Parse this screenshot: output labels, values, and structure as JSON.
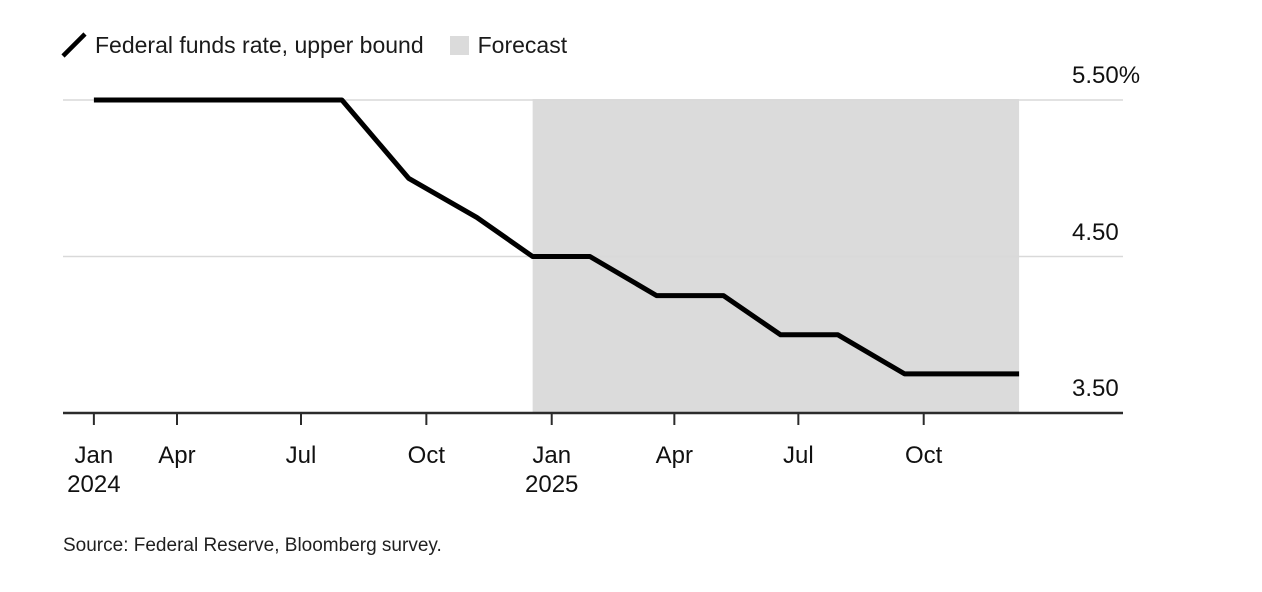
{
  "legend": {
    "series_label": "Federal funds rate, upper bound",
    "forecast_label": "Forecast"
  },
  "source": "Source: Federal Reserve, Bloomberg survey.",
  "chart_data": {
    "type": "line",
    "title": "",
    "ylabel": "",
    "xlabel": "",
    "unit": "percent",
    "ylim": [
      3.5,
      5.5
    ],
    "grid": "horizontal",
    "legend_position": "top-left",
    "line_color": "#000000",
    "forecast_fill": "#dbdbdb",
    "grid_color": "#d9d9d9",
    "axis_color": "#2b2b2b",
    "text_color": "#111111",
    "series": [
      {
        "name": "Federal funds rate, upper bound",
        "points": [
          {
            "date": "2024-01-31",
            "value": 5.5
          },
          {
            "date": "2024-03-20",
            "value": 5.5
          },
          {
            "date": "2024-05-01",
            "value": 5.5
          },
          {
            "date": "2024-06-12",
            "value": 5.5
          },
          {
            "date": "2024-07-31",
            "value": 5.5
          },
          {
            "date": "2024-09-18",
            "value": 5.0
          },
          {
            "date": "2024-11-07",
            "value": 4.75
          },
          {
            "date": "2024-12-18",
            "value": 4.5
          },
          {
            "date": "2025-01-29",
            "value": 4.5
          },
          {
            "date": "2025-03-19",
            "value": 4.25
          },
          {
            "date": "2025-05-07",
            "value": 4.25
          },
          {
            "date": "2025-06-18",
            "value": 4.0
          },
          {
            "date": "2025-07-30",
            "value": 4.0
          },
          {
            "date": "2025-09-17",
            "value": 3.75
          },
          {
            "date": "2025-10-29",
            "value": 3.75
          },
          {
            "date": "2025-12-10",
            "value": 3.75
          }
        ]
      }
    ],
    "forecast_region": {
      "start": "2024-12-18",
      "end": "2025-12-10"
    },
    "y_axis": {
      "ticks": [
        {
          "value": 5.5,
          "label": "5.50%"
        },
        {
          "value": 4.5,
          "label": "4.50"
        },
        {
          "value": 3.5,
          "label": "3.50"
        }
      ]
    },
    "x_axis": {
      "ticks": [
        {
          "date": "2024-01-31",
          "lines": [
            "Jan",
            "2024"
          ]
        },
        {
          "date": "2024-04-01",
          "lines": [
            "Apr"
          ]
        },
        {
          "date": "2024-07-01",
          "lines": [
            "Jul"
          ]
        },
        {
          "date": "2024-10-01",
          "lines": [
            "Oct"
          ]
        },
        {
          "date": "2025-01-01",
          "lines": [
            "Jan",
            "2025"
          ]
        },
        {
          "date": "2025-04-01",
          "lines": [
            "Apr"
          ]
        },
        {
          "date": "2025-07-01",
          "lines": [
            "Jul"
          ]
        },
        {
          "date": "2025-10-01",
          "lines": [
            "Oct"
          ]
        }
      ]
    }
  }
}
